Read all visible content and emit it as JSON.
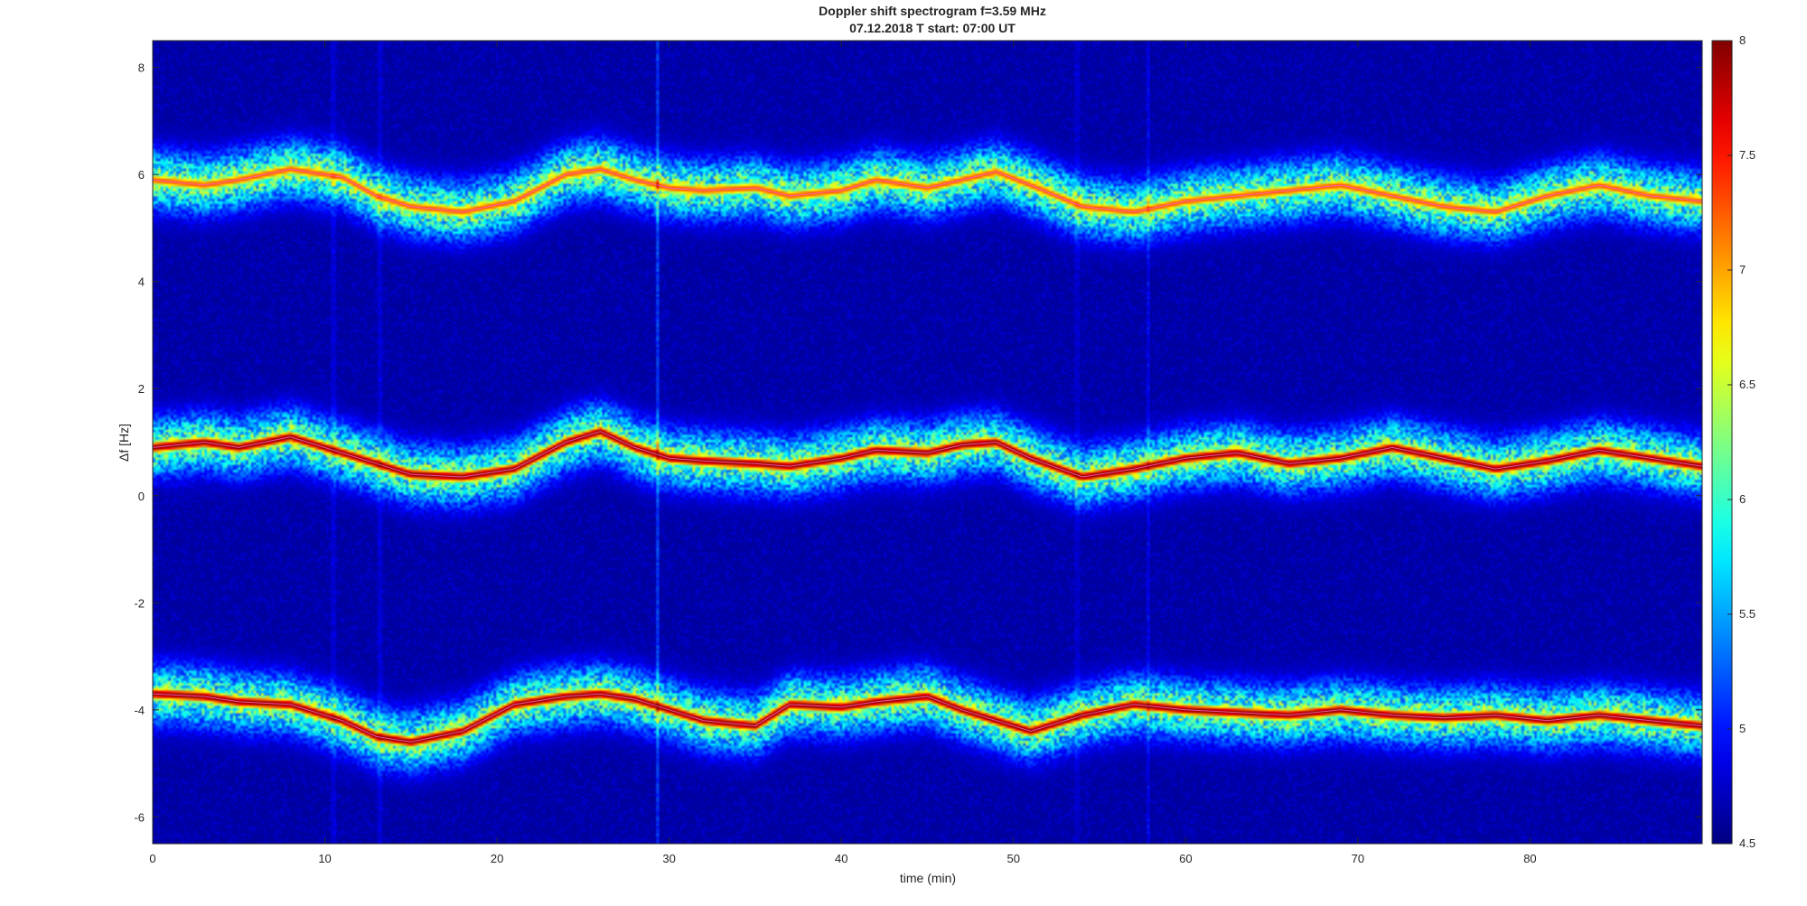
{
  "chart_data": {
    "type": "heatmap",
    "title": "Doppler shift spectrogram f=3.59 MHz",
    "subtitle": "07.12.2018   T start: 07:00 UT",
    "xlabel": "time (min)",
    "ylabel": "Δf [Hz]",
    "xlim": [
      0,
      90
    ],
    "ylim": [
      -6.5,
      8.5
    ],
    "x_ticks": [
      0,
      10,
      20,
      30,
      40,
      50,
      60,
      70,
      80
    ],
    "y_ticks": [
      -6,
      -4,
      -2,
      0,
      2,
      4,
      6,
      8
    ],
    "colorbar": {
      "colormap": "jet",
      "clim": [
        4.5,
        8
      ],
      "ticks": [
        4.5,
        5,
        5.5,
        6,
        6.5,
        7,
        7.5,
        8
      ]
    },
    "background_level": 4.6,
    "grid": false,
    "series": [
      {
        "x": [
          0,
          3,
          5,
          8,
          11,
          13,
          15,
          18,
          21,
          24,
          26,
          28,
          30,
          32,
          35,
          37,
          40,
          42,
          45,
          47,
          49,
          51,
          54,
          57,
          60,
          63,
          66,
          69,
          72,
          75,
          78,
          81,
          84,
          87,
          90
        ],
        "values": [
          5.9,
          5.8,
          5.9,
          6.1,
          5.95,
          5.6,
          5.4,
          5.3,
          5.5,
          6.0,
          6.1,
          5.9,
          5.75,
          5.7,
          5.75,
          5.6,
          5.7,
          5.9,
          5.75,
          5.9,
          6.05,
          5.8,
          5.4,
          5.3,
          5.5,
          5.6,
          5.7,
          5.8,
          5.6,
          5.4,
          5.3,
          5.6,
          5.8,
          5.6,
          5.5
        ],
        "peak_level": 7.3
      },
      {
        "x": [
          0,
          3,
          5,
          8,
          11,
          13,
          15,
          18,
          21,
          24,
          26,
          28,
          30,
          32,
          35,
          37,
          40,
          42,
          45,
          47,
          49,
          51,
          54,
          57,
          60,
          63,
          66,
          69,
          72,
          75,
          78,
          81,
          84,
          87,
          90
        ],
        "values": [
          0.9,
          1.0,
          0.9,
          1.1,
          0.8,
          0.6,
          0.4,
          0.35,
          0.5,
          1.0,
          1.2,
          0.9,
          0.7,
          0.65,
          0.6,
          0.55,
          0.7,
          0.85,
          0.8,
          0.95,
          1.0,
          0.7,
          0.35,
          0.5,
          0.7,
          0.8,
          0.6,
          0.7,
          0.9,
          0.7,
          0.5,
          0.65,
          0.85,
          0.7,
          0.55
        ],
        "peak_level": 8.0
      },
      {
        "x": [
          0,
          3,
          5,
          8,
          11,
          13,
          15,
          18,
          21,
          24,
          26,
          28,
          30,
          32,
          35,
          37,
          40,
          42,
          45,
          47,
          49,
          51,
          54,
          57,
          60,
          63,
          66,
          69,
          72,
          75,
          78,
          81,
          84,
          87,
          90
        ],
        "values": [
          -3.7,
          -3.75,
          -3.85,
          -3.9,
          -4.2,
          -4.5,
          -4.6,
          -4.4,
          -3.9,
          -3.75,
          -3.7,
          -3.8,
          -4.0,
          -4.2,
          -4.3,
          -3.9,
          -3.95,
          -3.85,
          -3.75,
          -4.0,
          -4.2,
          -4.4,
          -4.1,
          -3.9,
          -4.0,
          -4.05,
          -4.1,
          -4.0,
          -4.1,
          -4.15,
          -4.1,
          -4.2,
          -4.1,
          -4.2,
          -4.3
        ],
        "peak_level": 8.0
      }
    ],
    "features": [
      {
        "type": "vertical_stripe",
        "x": 29.3,
        "level": 5.4
      },
      {
        "type": "vertical_stripe",
        "x": 10.5,
        "level": 5.1
      },
      {
        "type": "vertical_stripe",
        "x": 13.2,
        "level": 5.1
      },
      {
        "type": "vertical_stripe",
        "x": 57.8,
        "level": 5.0
      },
      {
        "type": "vertical_stripe",
        "x": 53.7,
        "level": 5.0
      }
    ]
  }
}
